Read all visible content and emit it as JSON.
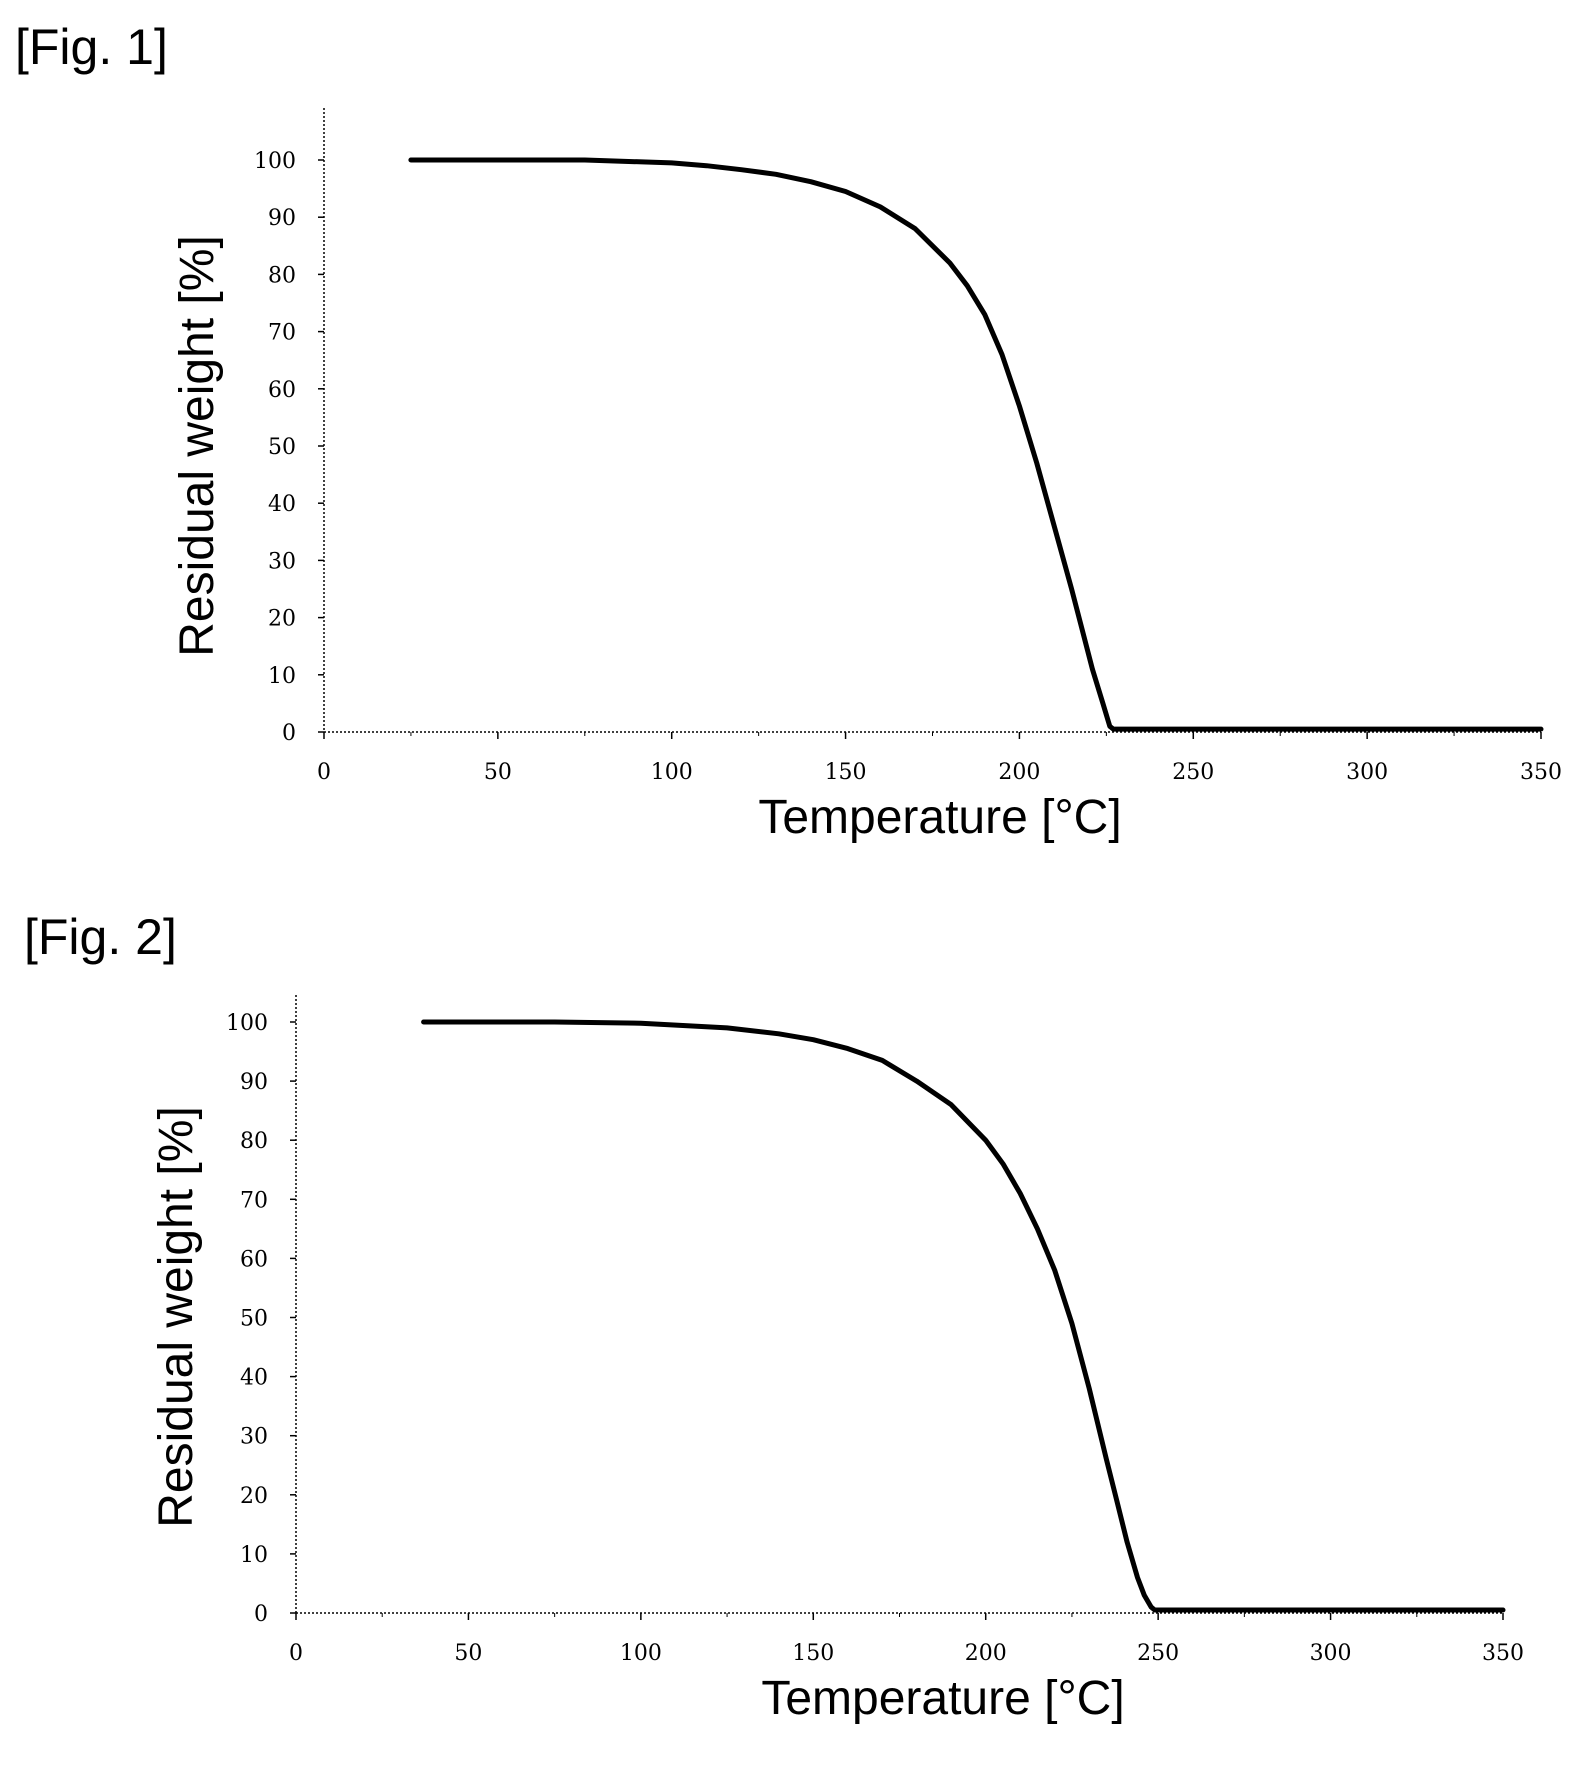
{
  "figures": [
    {
      "label": "[Fig. 1]"
    },
    {
      "label": "[Fig. 2]"
    }
  ],
  "colors": {
    "line": "#000000",
    "axis": "#000000",
    "background": "#ffffff"
  },
  "chart_data": [
    {
      "type": "line",
      "title": "",
      "xlabel": "Temperature [°C]",
      "ylabel": "Residual weight [%]",
      "xlim": [
        0,
        350
      ],
      "ylim": [
        0,
        100
      ],
      "xticks": [
        0,
        50,
        100,
        150,
        200,
        250,
        300,
        350
      ],
      "yticks": [
        0,
        10,
        20,
        30,
        40,
        50,
        60,
        70,
        80,
        90,
        100
      ],
      "grid": false,
      "legend": "none",
      "series": [
        {
          "x": [
            25,
            50,
            75,
            100,
            110,
            120,
            130,
            140,
            150,
            160,
            170,
            180,
            185,
            190,
            195,
            200,
            205,
            210,
            215,
            218,
            221,
            224,
            226,
            227,
            230,
            250,
            300,
            350
          ],
          "y": [
            100,
            100,
            100,
            99.5,
            99,
            98.3,
            97.5,
            96.2,
            94.5,
            91.8,
            88,
            82,
            78,
            73,
            66,
            57,
            47,
            36,
            25,
            18,
            11,
            5,
            1,
            0.5,
            0.5,
            0.5,
            0.5,
            0.5
          ]
        }
      ]
    },
    {
      "type": "line",
      "title": "",
      "xlabel": "Temperature [°C]",
      "ylabel": "Residual weight [%]",
      "xlim": [
        0,
        350
      ],
      "ylim": [
        0,
        100
      ],
      "xticks": [
        0,
        50,
        100,
        150,
        200,
        250,
        300,
        350
      ],
      "yticks": [
        0,
        10,
        20,
        30,
        40,
        50,
        60,
        70,
        80,
        90,
        100
      ],
      "grid": false,
      "legend": "none",
      "series": [
        {
          "x": [
            37,
            50,
            75,
            100,
            125,
            140,
            150,
            160,
            170,
            180,
            190,
            200,
            205,
            210,
            215,
            220,
            225,
            230,
            235,
            238,
            241,
            244,
            246,
            248,
            249,
            250,
            275,
            300,
            350
          ],
          "y": [
            100,
            100,
            100,
            99.8,
            99,
            98,
            97,
            95.5,
            93.5,
            90,
            86,
            80,
            76,
            71,
            65,
            58,
            49,
            38,
            26,
            19,
            12,
            6,
            3,
            1,
            0.5,
            0.5,
            0.5,
            0.5,
            0.5
          ]
        }
      ]
    }
  ]
}
